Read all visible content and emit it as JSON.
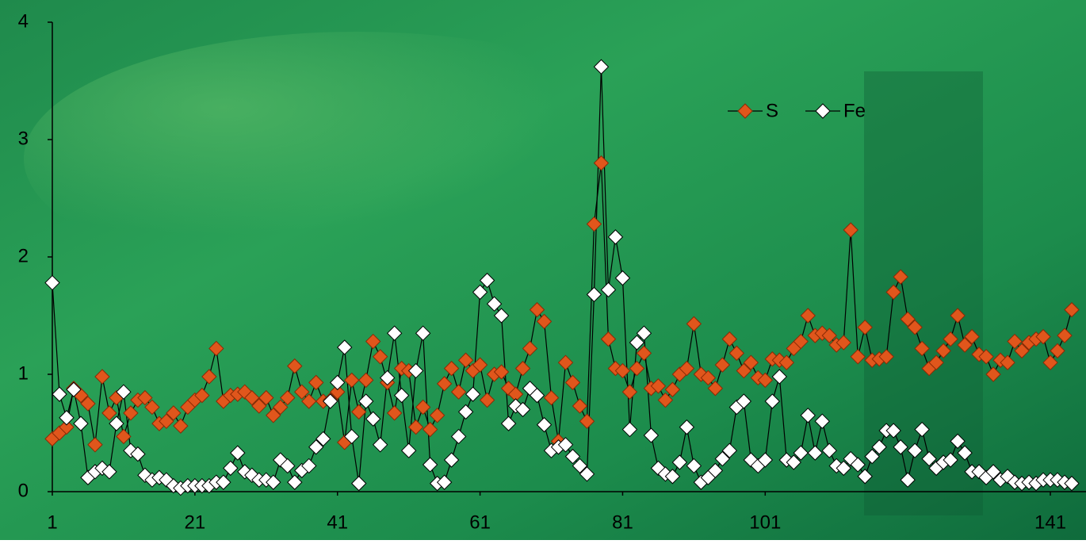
{
  "chart_data": {
    "type": "line",
    "x": [
      1,
      2,
      3,
      4,
      5,
      6,
      7,
      8,
      9,
      10,
      11,
      12,
      13,
      14,
      15,
      16,
      17,
      18,
      19,
      20,
      21,
      22,
      23,
      24,
      25,
      26,
      27,
      28,
      29,
      30,
      31,
      32,
      33,
      34,
      35,
      36,
      37,
      38,
      39,
      40,
      41,
      42,
      43,
      44,
      45,
      46,
      47,
      48,
      49,
      50,
      51,
      52,
      53,
      54,
      55,
      56,
      57,
      58,
      59,
      60,
      61,
      62,
      63,
      64,
      65,
      66,
      67,
      68,
      69,
      70,
      71,
      72,
      73,
      74,
      75,
      76,
      77,
      78,
      79,
      80,
      81,
      82,
      83,
      84,
      85,
      86,
      87,
      88,
      89,
      90,
      91,
      92,
      93,
      94,
      95,
      96,
      97,
      98,
      99,
      100,
      101,
      102,
      103,
      104,
      105,
      106,
      107,
      108,
      109,
      110,
      111,
      112,
      113,
      114,
      115,
      116,
      117,
      118,
      119,
      120,
      121,
      122,
      123,
      124,
      125,
      126,
      127,
      128,
      129,
      130,
      131,
      132,
      133,
      134,
      135,
      136,
      137,
      138,
      139,
      140,
      141,
      142,
      143,
      144
    ],
    "series": [
      {
        "name": "S",
        "color": "#e0561c",
        "values": [
          0.45,
          0.5,
          0.55,
          0.88,
          0.82,
          0.75,
          0.4,
          0.98,
          0.67,
          0.8,
          0.47,
          0.67,
          0.78,
          0.8,
          0.72,
          0.58,
          0.6,
          0.67,
          0.56,
          0.72,
          0.78,
          0.82,
          0.98,
          1.22,
          0.77,
          0.82,
          0.83,
          0.85,
          0.8,
          0.73,
          0.8,
          0.65,
          0.72,
          0.8,
          1.07,
          0.85,
          0.77,
          0.93,
          0.77,
          0.78,
          0.85,
          0.42,
          0.95,
          0.68,
          0.95,
          1.28,
          1.15,
          0.93,
          0.67,
          1.05,
          1.03,
          0.55,
          0.72,
          0.53,
          0.65,
          0.92,
          1.05,
          0.85,
          1.12,
          1.03,
          1.08,
          0.78,
          1.0,
          1.02,
          0.88,
          0.83,
          1.05,
          1.22,
          1.55,
          1.45,
          0.8,
          0.43,
          1.1,
          0.93,
          0.73,
          0.6,
          2.28,
          2.8,
          1.3,
          1.05,
          1.03,
          0.85,
          1.05,
          1.18,
          0.88,
          0.9,
          0.78,
          0.87,
          1.0,
          1.05,
          1.43,
          1.0,
          0.97,
          0.88,
          1.08,
          1.3,
          1.18,
          1.03,
          1.1,
          0.97,
          0.95,
          1.13,
          1.12,
          1.1,
          1.22,
          1.28,
          1.5,
          1.33,
          1.35,
          1.33,
          1.25,
          1.27,
          2.23,
          1.15,
          1.4,
          1.12,
          1.13,
          1.15,
          1.7,
          1.83,
          1.47,
          1.4,
          1.22,
          1.05,
          1.1,
          1.2,
          1.3,
          1.5,
          1.25,
          1.32,
          1.17,
          1.15,
          1.0,
          1.12,
          1.1,
          1.28,
          1.2,
          1.27,
          1.3,
          1.32,
          1.1,
          1.2,
          1.33,
          1.55
        ]
      },
      {
        "name": "Fe",
        "color": "#ffffff",
        "values": [
          1.78,
          0.83,
          0.63,
          0.87,
          0.58,
          0.12,
          0.17,
          0.2,
          0.17,
          0.58,
          0.85,
          0.35,
          0.32,
          0.14,
          0.1,
          0.12,
          0.1,
          0.05,
          0.03,
          0.05,
          0.05,
          0.05,
          0.05,
          0.08,
          0.08,
          0.2,
          0.33,
          0.17,
          0.14,
          0.1,
          0.1,
          0.08,
          0.27,
          0.22,
          0.08,
          0.18,
          0.22,
          0.38,
          0.45,
          0.77,
          0.93,
          1.23,
          0.47,
          0.07,
          0.77,
          0.62,
          0.4,
          0.97,
          1.35,
          0.82,
          0.35,
          1.03,
          1.35,
          0.23,
          0.07,
          0.08,
          0.27,
          0.47,
          0.68,
          0.83,
          1.7,
          1.8,
          1.6,
          1.5,
          0.58,
          0.73,
          0.7,
          0.88,
          0.82,
          0.57,
          0.35,
          0.38,
          0.4,
          0.3,
          0.22,
          0.15,
          1.68,
          3.62,
          1.72,
          2.17,
          1.82,
          0.53,
          1.27,
          1.35,
          0.48,
          0.2,
          0.15,
          0.13,
          0.25,
          0.55,
          0.22,
          0.08,
          0.12,
          0.18,
          0.28,
          0.35,
          0.72,
          0.77,
          0.27,
          0.22,
          0.27,
          0.77,
          0.98,
          0.27,
          0.25,
          0.33,
          0.65,
          0.33,
          0.6,
          0.35,
          0.22,
          0.2,
          0.28,
          0.23,
          0.13,
          0.3,
          0.38,
          0.52,
          0.52,
          0.38,
          0.1,
          0.35,
          0.53,
          0.28,
          0.2,
          0.25,
          0.27,
          0.43,
          0.33,
          0.17,
          0.17,
          0.12,
          0.17,
          0.1,
          0.13,
          0.08,
          0.07,
          0.08,
          0.07,
          0.1,
          0.1,
          0.1,
          0.08,
          0.07
        ]
      }
    ],
    "xlim": [
      1,
      146
    ],
    "xticks": [
      1,
      21,
      41,
      61,
      81,
      101,
      141
    ],
    "ylim": [
      0,
      4
    ],
    "yticks": [
      0,
      1,
      2,
      3,
      4
    ],
    "legend": "top-right",
    "grid": false
  }
}
